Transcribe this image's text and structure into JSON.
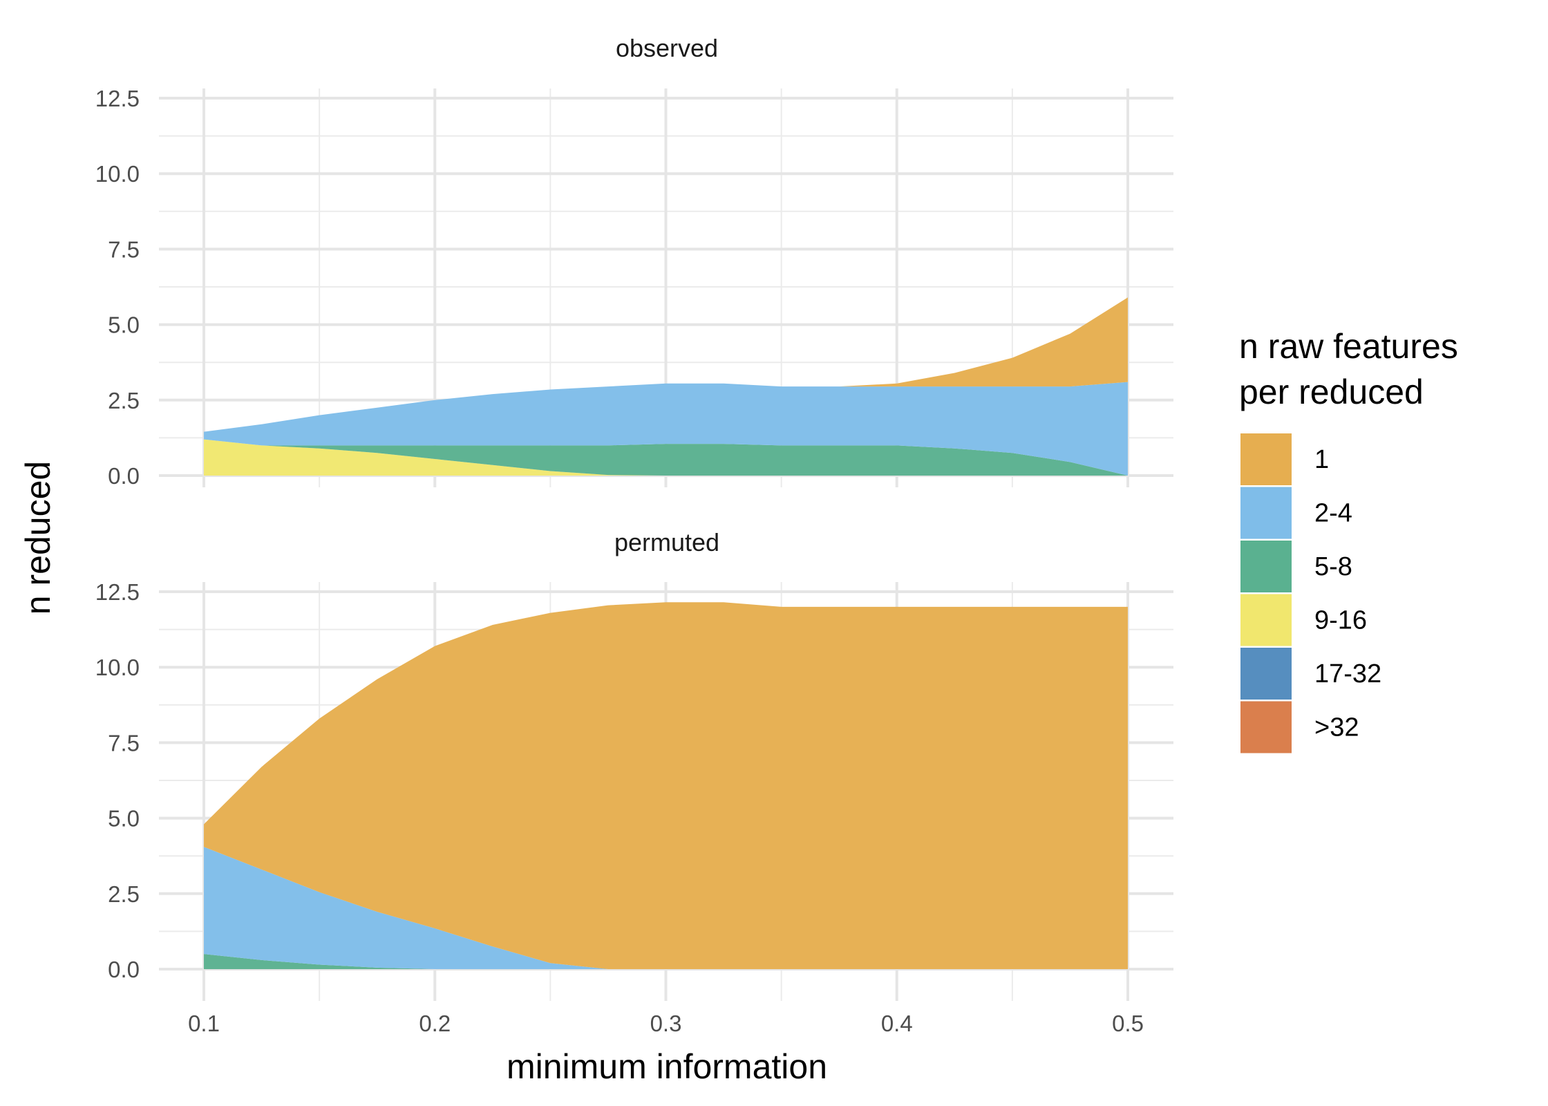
{
  "chart_data": {
    "type": "area",
    "stacked": true,
    "xlabel": "minimum information",
    "ylabel": "n reduced",
    "xlim": [
      0.1,
      0.5
    ],
    "ylim": [
      0,
      12.5
    ],
    "x_ticks": [
      "0.1",
      "0.2",
      "0.3",
      "0.4",
      "0.5"
    ],
    "y_ticks": [
      "0.0",
      "2.5",
      "5.0",
      "7.5",
      "10.0",
      "12.5"
    ],
    "grid": true,
    "legend": {
      "title_line1": "n raw features",
      "title_line2": "per reduced",
      "position": "right",
      "entries": [
        {
          "label": "1",
          "color": "#E6AE50"
        },
        {
          "label": "2-4",
          "color": "#7FBDE9"
        },
        {
          "label": "5-8",
          "color": "#5AB190"
        },
        {
          "label": "9-16",
          "color": "#F1E76E"
        },
        {
          "label": "17-32",
          "color": "#568EBF"
        },
        {
          "label": ">32",
          "color": "#DA7F4D"
        }
      ]
    },
    "x": [
      0.1,
      0.125,
      0.15,
      0.175,
      0.2,
      0.225,
      0.25,
      0.275,
      0.3,
      0.325,
      0.35,
      0.375,
      0.4,
      0.425,
      0.45,
      0.475,
      0.5
    ],
    "panels": [
      {
        "title": "observed",
        "series": [
          {
            "name": "9-16",
            "values": [
              1.2,
              1.0,
              0.9,
              0.75,
              0.55,
              0.35,
              0.15,
              0.02,
              0,
              0,
              0,
              0,
              0,
              0,
              0,
              0,
              0
            ]
          },
          {
            "name": "5-8",
            "values": [
              0,
              0,
              0.1,
              0.25,
              0.45,
              0.65,
              0.85,
              0.98,
              1.05,
              1.05,
              1.0,
              1.0,
              1.0,
              0.9,
              0.75,
              0.45,
              0
            ]
          },
          {
            "name": "2-4",
            "values": [
              0.25,
              0.7,
              1.0,
              1.25,
              1.5,
              1.7,
              1.85,
              1.95,
              2.0,
              2.0,
              1.95,
              1.95,
              1.95,
              2.05,
              2.2,
              2.5,
              3.1
            ]
          },
          {
            "name": "1",
            "values": [
              0,
              0,
              0,
              0,
              0,
              0,
              0,
              0,
              0,
              0,
              0,
              0,
              0.1,
              0.45,
              0.95,
              1.75,
              2.8
            ]
          }
        ]
      },
      {
        "title": "permuted",
        "series": [
          {
            "name": "9-16",
            "values": [
              0,
              0,
              0,
              0,
              0,
              0,
              0,
              0,
              0,
              0,
              0,
              0,
              0,
              0,
              0,
              0,
              0
            ]
          },
          {
            "name": "5-8",
            "values": [
              0.5,
              0.3,
              0.15,
              0.05,
              0,
              0,
              0,
              0,
              0,
              0,
              0,
              0,
              0,
              0,
              0,
              0,
              0
            ]
          },
          {
            "name": "2-4",
            "values": [
              3.55,
              3.0,
              2.4,
              1.85,
              1.35,
              0.75,
              0.2,
              0,
              0,
              0,
              0,
              0,
              0,
              0,
              0,
              0,
              0
            ]
          },
          {
            "name": "1",
            "values": [
              0.75,
              3.4,
              5.75,
              7.7,
              9.35,
              10.65,
              11.6,
              12.05,
              12.15,
              12.15,
              12.0,
              12.0,
              12.0,
              12.0,
              12.0,
              12.0,
              12.0
            ]
          }
        ]
      }
    ]
  }
}
